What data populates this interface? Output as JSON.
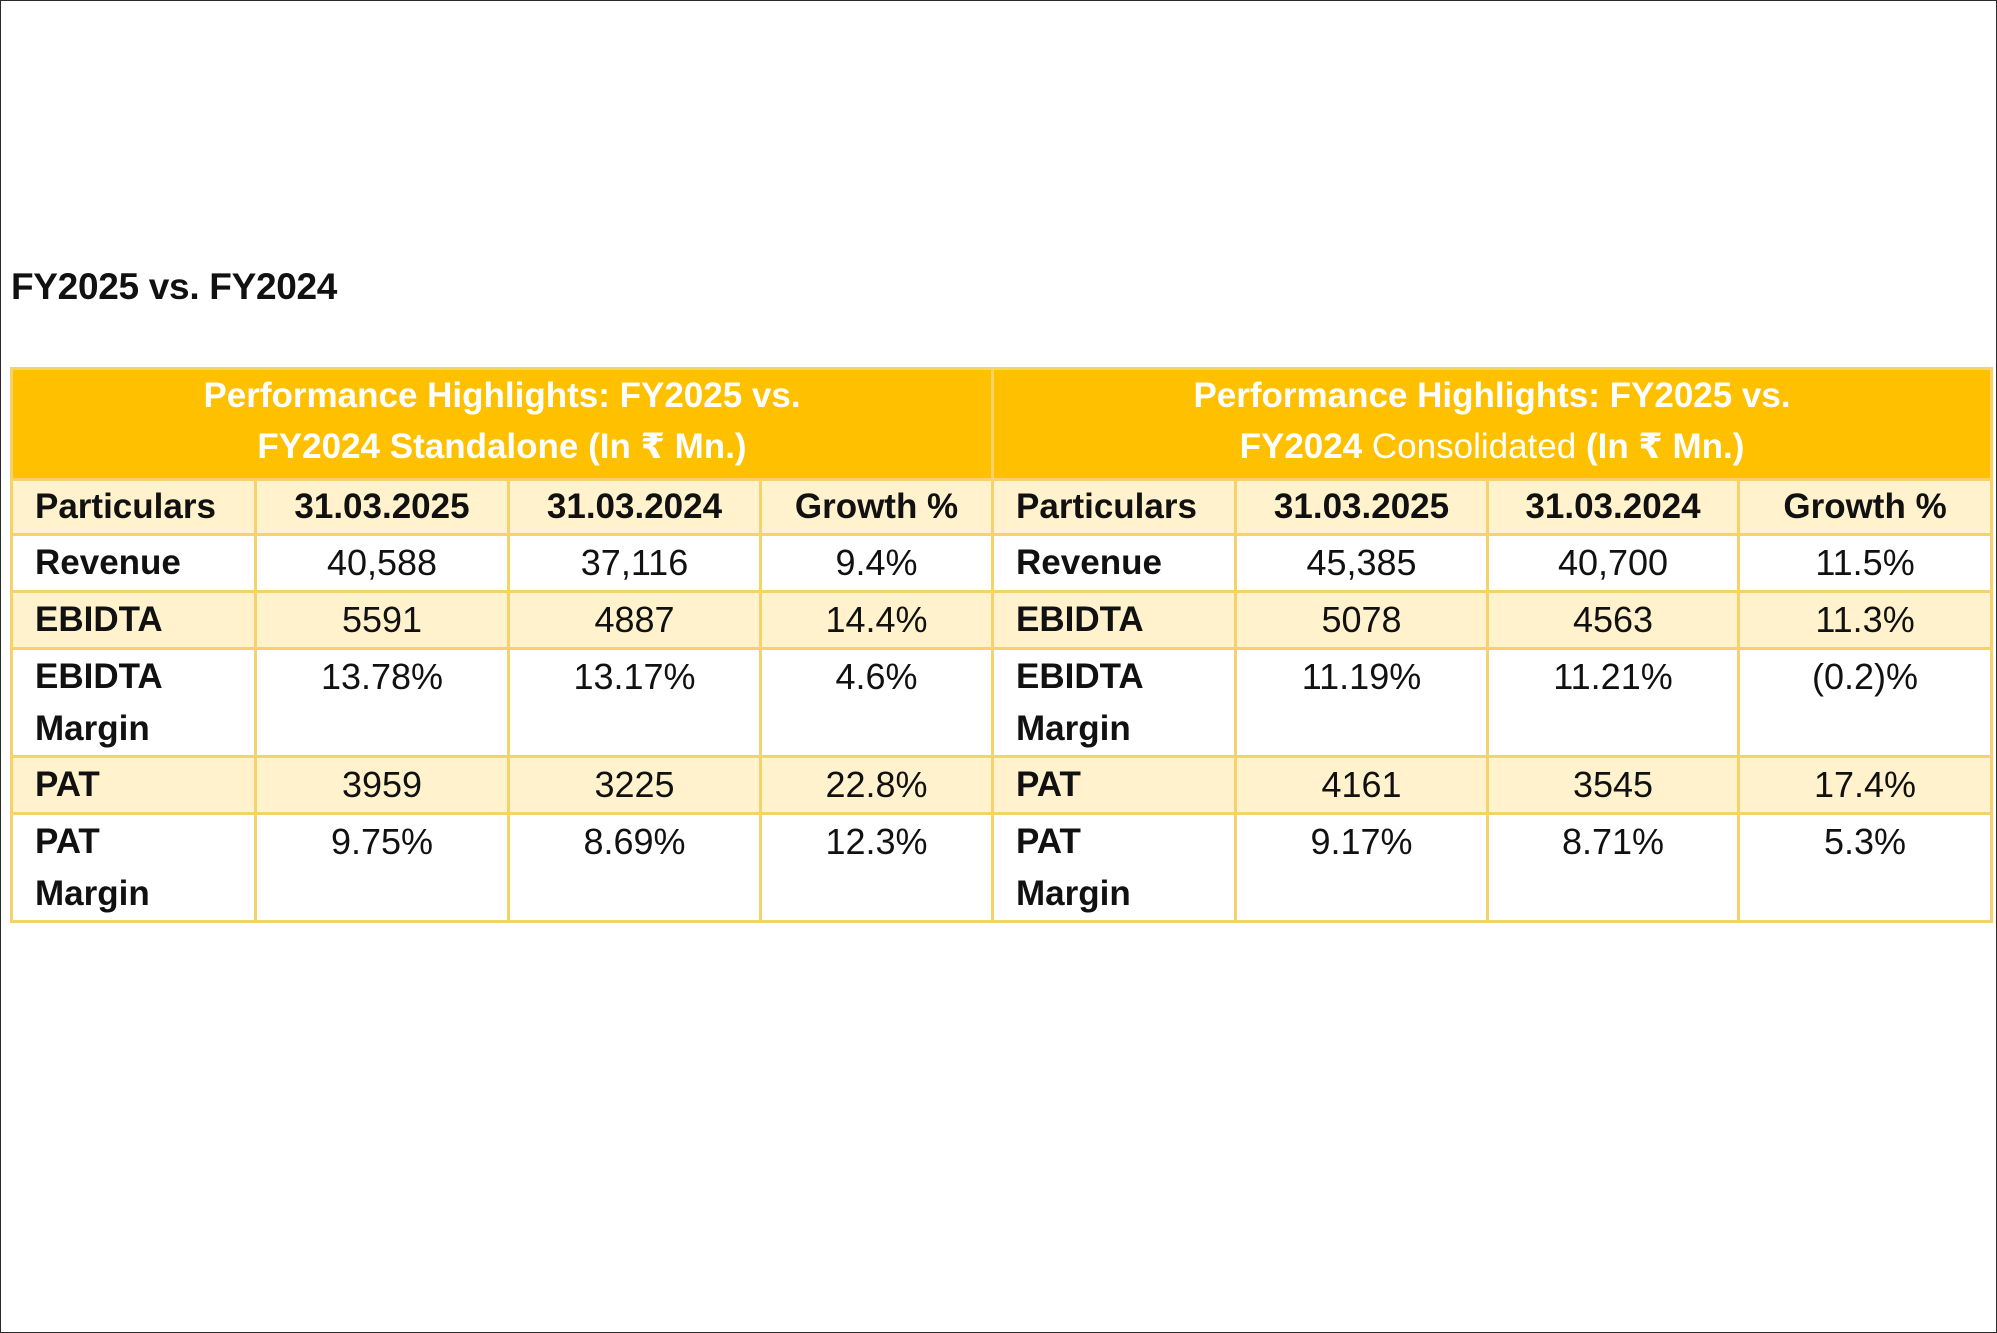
{
  "heading": "FY2025 vs. FY2024",
  "standalone": {
    "title_line1": "Performance Highlights: FY2025 vs.",
    "title_line2_a": "FY2024 Standalone ",
    "title_line2_b": "(In ₹ Mn.)",
    "columns": [
      "Particulars",
      "31.03.2025",
      "31.03.2024",
      "Growth %"
    ],
    "rows": [
      {
        "label": [
          "Revenue"
        ],
        "fy2025": "40,588",
        "fy2024": "37,116",
        "growth": "9.4%"
      },
      {
        "label": [
          "EBIDTA"
        ],
        "fy2025": "5591",
        "fy2024": "4887",
        "growth": "14.4%"
      },
      {
        "label": [
          "EBIDTA",
          "Margin"
        ],
        "fy2025": "13.78%",
        "fy2024": "13.17%",
        "growth": "4.6%"
      },
      {
        "label": [
          "PAT"
        ],
        "fy2025": "3959",
        "fy2024": "3225",
        "growth": "22.8%"
      },
      {
        "label": [
          "PAT",
          "Margin"
        ],
        "fy2025": "9.75%",
        "fy2024": "8.69%",
        "growth": "12.3%"
      }
    ]
  },
  "consolidated": {
    "title_line1": "Performance Highlights: FY2025 vs.",
    "title_line2_a": "FY2024 ",
    "title_line2_b": "Consolidated ",
    "title_line2_c": "(In ₹ Mn.)",
    "columns": [
      "Particulars",
      "31.03.2025",
      "31.03.2024",
      "Growth %"
    ],
    "rows": [
      {
        "label": [
          "Revenue"
        ],
        "fy2025": "45,385",
        "fy2024": "40,700",
        "growth": "11.5%"
      },
      {
        "label": [
          "EBIDTA"
        ],
        "fy2025": "5078",
        "fy2024": "4563",
        "growth": "11.3%"
      },
      {
        "label": [
          "EBIDTA",
          "Margin"
        ],
        "fy2025": "11.19%",
        "fy2024": "11.21%",
        "growth": "(0.2)%"
      },
      {
        "label": [
          "PAT"
        ],
        "fy2025": "4161",
        "fy2024": "3545",
        "growth": "17.4%"
      },
      {
        "label": [
          "PAT",
          "Margin"
        ],
        "fy2025": "9.17%",
        "fy2024": "8.71%",
        "growth": "5.3%"
      }
    ]
  },
  "colors": {
    "title_band": "#ffc000",
    "shade_row": "#fff2cc",
    "grid_line": "#f6d36a"
  }
}
